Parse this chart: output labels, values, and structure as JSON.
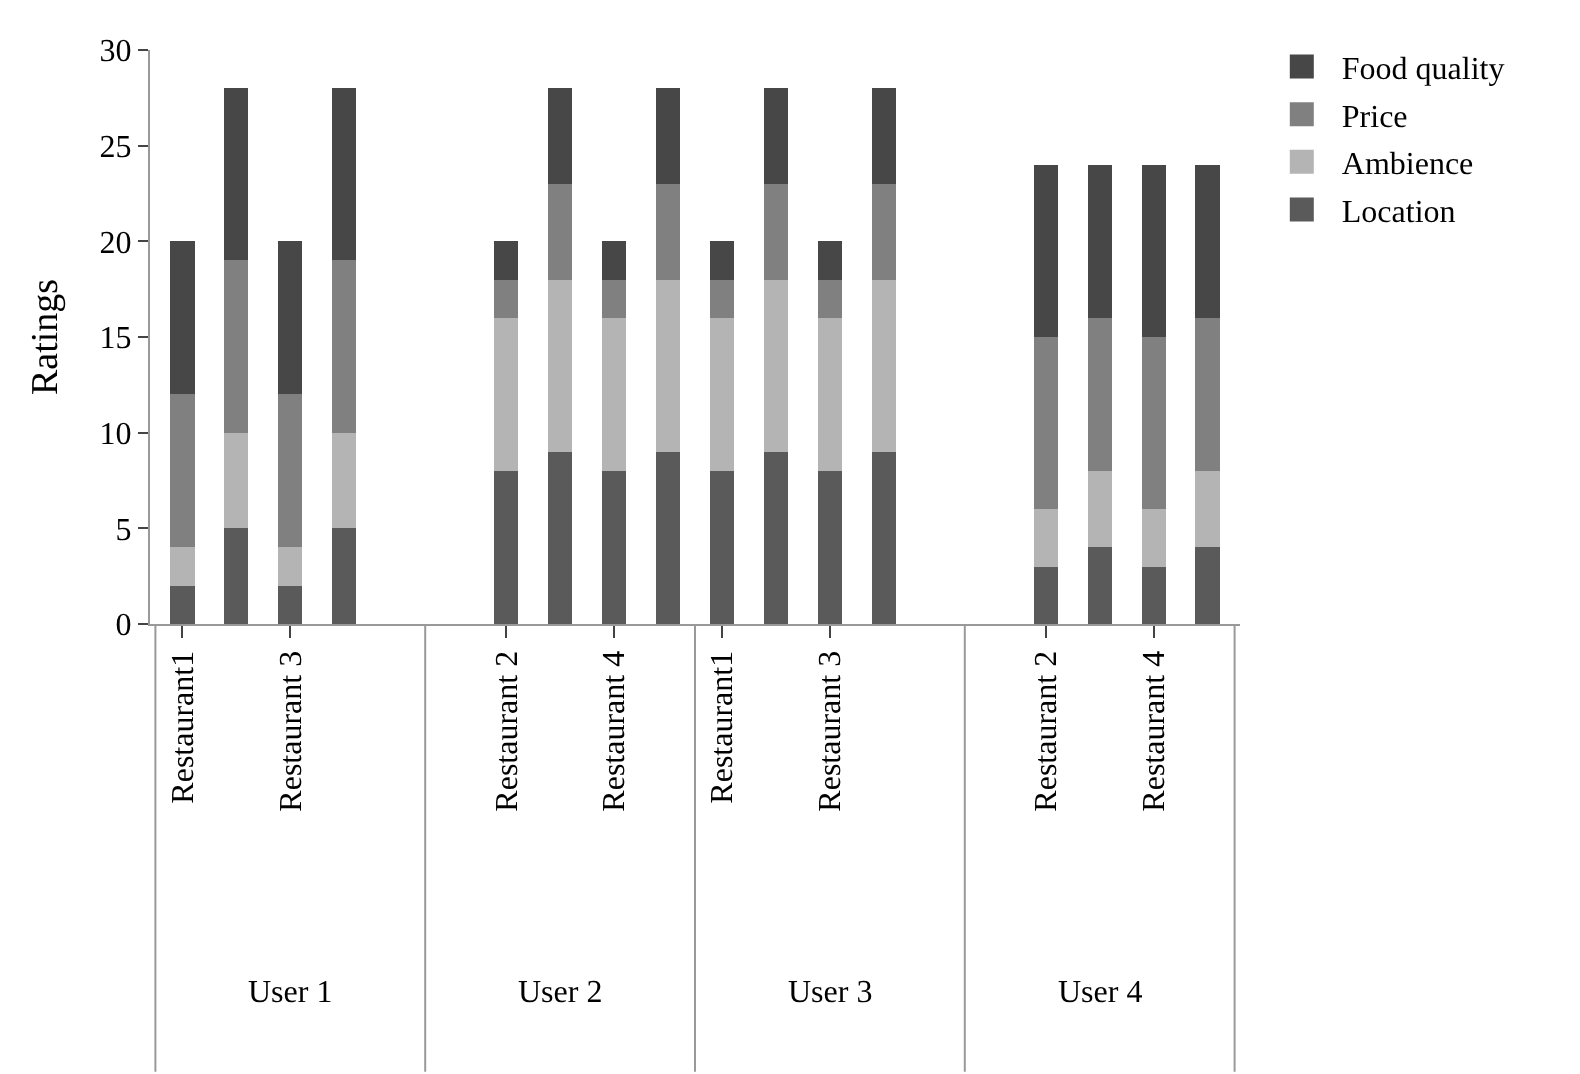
{
  "chart_data": {
    "type": "bar",
    "stacked": true,
    "ylabel": "Ratings",
    "ylim": [
      0,
      30
    ],
    "yticks": [
      0,
      5,
      10,
      15,
      20,
      25,
      30
    ],
    "legend": "top right",
    "categories": [
      "Restaurant1",
      null,
      "Restaurant 3",
      null,
      null,
      null,
      "Restaurant 2",
      null,
      "Restaurant 4",
      null,
      "Restaurant1",
      null,
      "Restaurant 3",
      null,
      null,
      null,
      "Restaurant 2",
      null,
      "Restaurant 4",
      null
    ],
    "series": [
      {
        "name": "Location",
        "color": "#5a5a5a",
        "values": [
          2,
          5,
          2,
          5,
          null,
          null,
          8,
          9,
          8,
          9,
          8,
          9,
          8,
          9,
          null,
          null,
          3,
          4,
          3,
          4
        ]
      },
      {
        "name": "Ambience",
        "color": "#b4b4b4",
        "values": [
          2,
          5,
          2,
          5,
          null,
          null,
          8,
          9,
          8,
          9,
          8,
          9,
          8,
          9,
          null,
          null,
          3,
          4,
          3,
          4
        ]
      },
      {
        "name": "Price",
        "color": "#808080",
        "values": [
          8,
          9,
          8,
          9,
          null,
          null,
          2,
          5,
          2,
          5,
          2,
          5,
          2,
          5,
          null,
          null,
          9,
          8,
          9,
          8
        ]
      },
      {
        "name": "Food quality",
        "color": "#474747",
        "values": [
          8,
          9,
          8,
          9,
          null,
          null,
          2,
          5,
          2,
          5,
          2,
          5,
          2,
          5,
          null,
          null,
          9,
          8,
          9,
          8
        ]
      }
    ],
    "annotations": [
      "User 1",
      "User 2",
      "User 3",
      "User 4"
    ]
  }
}
